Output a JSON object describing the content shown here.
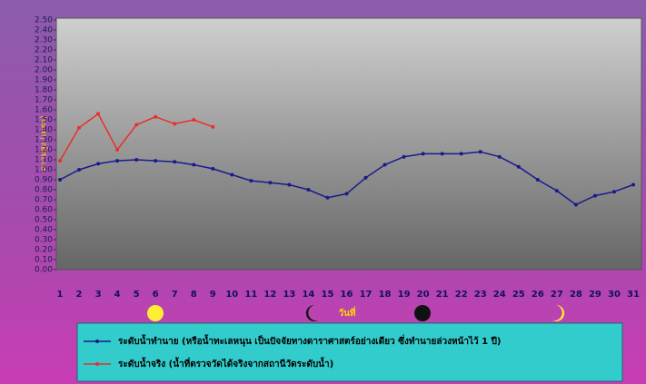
{
  "chart_data": {
    "type": "line",
    "y_label": "ความสูง (เมตร)",
    "x_label": "วันที่",
    "categories": [
      1,
      2,
      3,
      4,
      5,
      6,
      7,
      8,
      9,
      10,
      11,
      12,
      13,
      14,
      15,
      16,
      17,
      18,
      19,
      20,
      21,
      22,
      23,
      24,
      25,
      26,
      27,
      28,
      29,
      30,
      31
    ],
    "series": [
      {
        "name": "ระดับน้ำทำนาย (หรือน้ำทะเลหนุน เป็นปัจจัยทางดาราศาสตร์อย่างเดียว ซึ่งทำนายล่วงหน้าไว้ 1 ปี)",
        "color": "#1a1a8c",
        "values": [
          0.9,
          1.0,
          1.06,
          1.09,
          1.1,
          1.09,
          1.08,
          1.05,
          1.01,
          0.95,
          0.89,
          0.87,
          0.85,
          0.8,
          0.72,
          0.76,
          0.92,
          1.05,
          1.13,
          1.16,
          1.16,
          1.16,
          1.18,
          1.13,
          1.03,
          0.9,
          0.79,
          0.65,
          0.74,
          0.78,
          0.85
        ]
      },
      {
        "name": "ระดับน้ำจริง (น้ำที่ตรวจวัดได้จริงจากสถานีวัดระดับน้ำ)",
        "color": "#e8302a",
        "values": [
          1.09,
          1.42,
          1.56,
          1.2,
          1.45,
          1.53,
          1.46,
          1.5,
          1.43,
          null,
          null,
          null,
          null,
          null,
          null,
          null,
          null,
          null,
          null,
          null,
          null,
          null,
          null,
          null,
          null,
          null,
          null,
          null,
          null,
          null,
          null
        ]
      }
    ],
    "ylim": [
      0,
      2.5
    ],
    "yticks": [
      {
        "value": 0,
        "label": "0.00"
      },
      {
        "value": 0.1,
        "label": "0.10"
      },
      {
        "value": 0.2,
        "label": "0.20"
      },
      {
        "value": 0.3,
        "label": "0.30"
      },
      {
        "value": 0.4,
        "label": "0.40"
      },
      {
        "value": 0.5,
        "label": "0.50"
      },
      {
        "value": 0.6,
        "label": "0.60"
      },
      {
        "value": 0.7,
        "label": "0.70"
      },
      {
        "value": 0.8,
        "label": "0.80"
      },
      {
        "value": 0.9,
        "label": "0.90"
      },
      {
        "value": 1,
        "label": "1.00"
      },
      {
        "value": 1.1,
        "label": "1.10"
      },
      {
        "value": 1.2,
        "label": "1.20"
      },
      {
        "value": 1.3,
        "label": "1.30"
      },
      {
        "value": 1.4,
        "label": "1.40"
      },
      {
        "value": 1.5,
        "label": "1.50"
      },
      {
        "value": 1.6,
        "label": "1.60"
      },
      {
        "value": 1.7,
        "label": "1.70"
      },
      {
        "value": 1.8,
        "label": "1.80"
      },
      {
        "value": 1.9,
        "label": "1.90"
      },
      {
        "value": 2,
        "label": "2.00"
      },
      {
        "value": 2.1,
        "label": "2.10"
      },
      {
        "value": 2.2,
        "label": "2.20"
      },
      {
        "value": 2.3,
        "label": "2.30"
      },
      {
        "value": 2.4,
        "label": "2.40"
      },
      {
        "value": 2.5,
        "label": "2.50"
      }
    ],
    "grid": false
  }
}
